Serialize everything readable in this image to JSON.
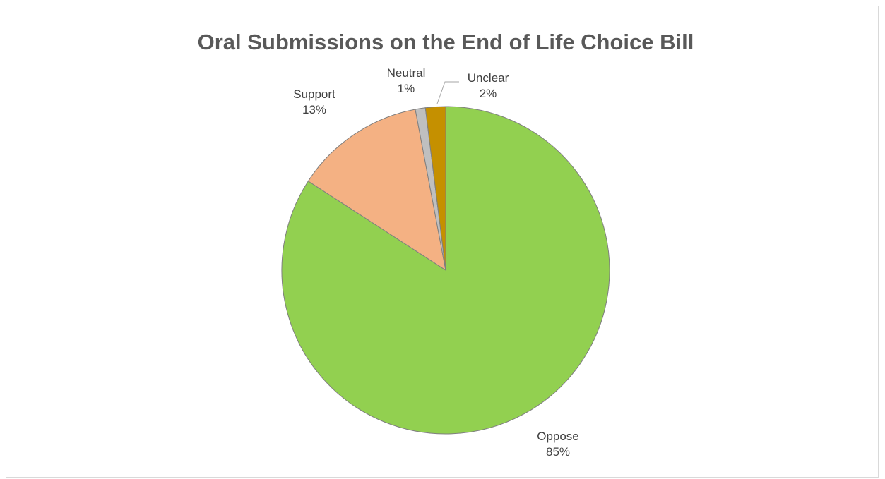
{
  "chart_data": {
    "type": "pie",
    "title": "Oral Submissions on the End of Life Choice Bill",
    "slices": [
      {
        "label": "Oppose",
        "value": 85,
        "display_value": "85%",
        "color": "#92d050"
      },
      {
        "label": "Support",
        "value": 13,
        "display_value": "13%",
        "color": "#f4b183"
      },
      {
        "label": "Neutral",
        "value": 1,
        "display_value": "1%",
        "color": "#bfbfbf"
      },
      {
        "label": "Unclear",
        "value": 2,
        "display_value": "2%",
        "color": "#c59000"
      }
    ],
    "slice_order": "clockwise from top",
    "slice_border_color": "#7f7f7f",
    "legend": "none",
    "data_labels": "outside end, category name and percentage"
  }
}
